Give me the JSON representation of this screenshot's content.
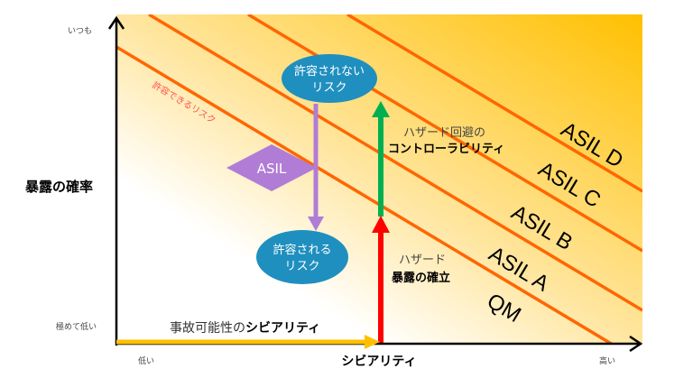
{
  "axes": {
    "y_label": "暴露の確率",
    "y_high": "いつも",
    "y_low": "極めて低い",
    "x_label": "シビアリティ",
    "x_low": "低い",
    "x_high": "高い"
  },
  "zones": [
    "QM",
    "ASIL A",
    "ASIL B",
    "ASIL C",
    "ASIL D"
  ],
  "tolerable_line_label": "許容できるリスク",
  "bubbles": {
    "intolerable": [
      "許容されない",
      "リスク"
    ],
    "tolerable": [
      "許容される",
      "リスク"
    ],
    "asil": "ASIL"
  },
  "labels": {
    "controllability_1": "ハザード回避の",
    "controllability_2": "コントローラビリティ",
    "exposure_1": "ハザード",
    "exposure_2": "暴露の確立",
    "severity_prefix": "事故可能性の",
    "severity_bold": "シビアリティ"
  },
  "colors": {
    "gradient_light": "#FFFFFF",
    "gradient_dark": "#FFC000",
    "zone_line": "#FF6600",
    "bubble": "#1F8FBF",
    "asil": "#B07CD6",
    "controllability_arrow": "#00B050",
    "exposure_arrow": "#FF0000",
    "severity_arrow": "#FFC000"
  }
}
